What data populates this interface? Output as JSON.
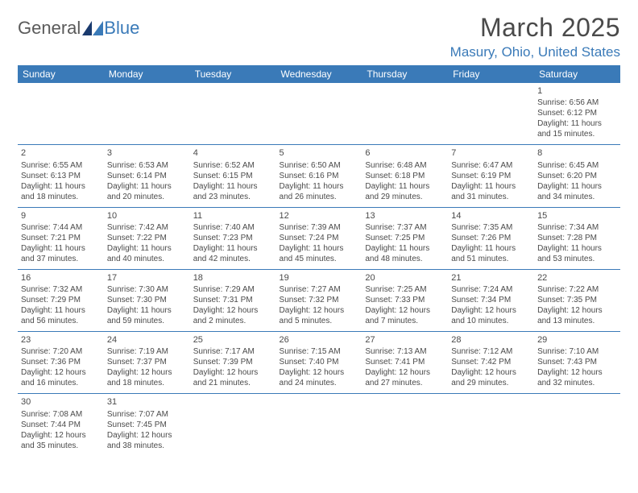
{
  "brand": {
    "general": "General",
    "blue": "Blue",
    "color_primary": "#3a7ab8",
    "color_text": "#5a5a5a"
  },
  "title": "March 2025",
  "location": "Masury, Ohio, United States",
  "weekday_labels": [
    "Sunday",
    "Monday",
    "Tuesday",
    "Wednesday",
    "Thursday",
    "Friday",
    "Saturday"
  ],
  "colors": {
    "header_bg": "#3a7ab8",
    "header_fg": "#ffffff",
    "cell_border": "#3a7ab8",
    "text": "#4a4a4a",
    "background": "#ffffff"
  },
  "weeks": [
    [
      null,
      null,
      null,
      null,
      null,
      null,
      {
        "d": "1",
        "sr": "Sunrise: 6:56 AM",
        "ss": "Sunset: 6:12 PM",
        "dl1": "Daylight: 11 hours",
        "dl2": "and 15 minutes."
      }
    ],
    [
      {
        "d": "2",
        "sr": "Sunrise: 6:55 AM",
        "ss": "Sunset: 6:13 PM",
        "dl1": "Daylight: 11 hours",
        "dl2": "and 18 minutes."
      },
      {
        "d": "3",
        "sr": "Sunrise: 6:53 AM",
        "ss": "Sunset: 6:14 PM",
        "dl1": "Daylight: 11 hours",
        "dl2": "and 20 minutes."
      },
      {
        "d": "4",
        "sr": "Sunrise: 6:52 AM",
        "ss": "Sunset: 6:15 PM",
        "dl1": "Daylight: 11 hours",
        "dl2": "and 23 minutes."
      },
      {
        "d": "5",
        "sr": "Sunrise: 6:50 AM",
        "ss": "Sunset: 6:16 PM",
        "dl1": "Daylight: 11 hours",
        "dl2": "and 26 minutes."
      },
      {
        "d": "6",
        "sr": "Sunrise: 6:48 AM",
        "ss": "Sunset: 6:18 PM",
        "dl1": "Daylight: 11 hours",
        "dl2": "and 29 minutes."
      },
      {
        "d": "7",
        "sr": "Sunrise: 6:47 AM",
        "ss": "Sunset: 6:19 PM",
        "dl1": "Daylight: 11 hours",
        "dl2": "and 31 minutes."
      },
      {
        "d": "8",
        "sr": "Sunrise: 6:45 AM",
        "ss": "Sunset: 6:20 PM",
        "dl1": "Daylight: 11 hours",
        "dl2": "and 34 minutes."
      }
    ],
    [
      {
        "d": "9",
        "sr": "Sunrise: 7:44 AM",
        "ss": "Sunset: 7:21 PM",
        "dl1": "Daylight: 11 hours",
        "dl2": "and 37 minutes."
      },
      {
        "d": "10",
        "sr": "Sunrise: 7:42 AM",
        "ss": "Sunset: 7:22 PM",
        "dl1": "Daylight: 11 hours",
        "dl2": "and 40 minutes."
      },
      {
        "d": "11",
        "sr": "Sunrise: 7:40 AM",
        "ss": "Sunset: 7:23 PM",
        "dl1": "Daylight: 11 hours",
        "dl2": "and 42 minutes."
      },
      {
        "d": "12",
        "sr": "Sunrise: 7:39 AM",
        "ss": "Sunset: 7:24 PM",
        "dl1": "Daylight: 11 hours",
        "dl2": "and 45 minutes."
      },
      {
        "d": "13",
        "sr": "Sunrise: 7:37 AM",
        "ss": "Sunset: 7:25 PM",
        "dl1": "Daylight: 11 hours",
        "dl2": "and 48 minutes."
      },
      {
        "d": "14",
        "sr": "Sunrise: 7:35 AM",
        "ss": "Sunset: 7:26 PM",
        "dl1": "Daylight: 11 hours",
        "dl2": "and 51 minutes."
      },
      {
        "d": "15",
        "sr": "Sunrise: 7:34 AM",
        "ss": "Sunset: 7:28 PM",
        "dl1": "Daylight: 11 hours",
        "dl2": "and 53 minutes."
      }
    ],
    [
      {
        "d": "16",
        "sr": "Sunrise: 7:32 AM",
        "ss": "Sunset: 7:29 PM",
        "dl1": "Daylight: 11 hours",
        "dl2": "and 56 minutes."
      },
      {
        "d": "17",
        "sr": "Sunrise: 7:30 AM",
        "ss": "Sunset: 7:30 PM",
        "dl1": "Daylight: 11 hours",
        "dl2": "and 59 minutes."
      },
      {
        "d": "18",
        "sr": "Sunrise: 7:29 AM",
        "ss": "Sunset: 7:31 PM",
        "dl1": "Daylight: 12 hours",
        "dl2": "and 2 minutes."
      },
      {
        "d": "19",
        "sr": "Sunrise: 7:27 AM",
        "ss": "Sunset: 7:32 PM",
        "dl1": "Daylight: 12 hours",
        "dl2": "and 5 minutes."
      },
      {
        "d": "20",
        "sr": "Sunrise: 7:25 AM",
        "ss": "Sunset: 7:33 PM",
        "dl1": "Daylight: 12 hours",
        "dl2": "and 7 minutes."
      },
      {
        "d": "21",
        "sr": "Sunrise: 7:24 AM",
        "ss": "Sunset: 7:34 PM",
        "dl1": "Daylight: 12 hours",
        "dl2": "and 10 minutes."
      },
      {
        "d": "22",
        "sr": "Sunrise: 7:22 AM",
        "ss": "Sunset: 7:35 PM",
        "dl1": "Daylight: 12 hours",
        "dl2": "and 13 minutes."
      }
    ],
    [
      {
        "d": "23",
        "sr": "Sunrise: 7:20 AM",
        "ss": "Sunset: 7:36 PM",
        "dl1": "Daylight: 12 hours",
        "dl2": "and 16 minutes."
      },
      {
        "d": "24",
        "sr": "Sunrise: 7:19 AM",
        "ss": "Sunset: 7:37 PM",
        "dl1": "Daylight: 12 hours",
        "dl2": "and 18 minutes."
      },
      {
        "d": "25",
        "sr": "Sunrise: 7:17 AM",
        "ss": "Sunset: 7:39 PM",
        "dl1": "Daylight: 12 hours",
        "dl2": "and 21 minutes."
      },
      {
        "d": "26",
        "sr": "Sunrise: 7:15 AM",
        "ss": "Sunset: 7:40 PM",
        "dl1": "Daylight: 12 hours",
        "dl2": "and 24 minutes."
      },
      {
        "d": "27",
        "sr": "Sunrise: 7:13 AM",
        "ss": "Sunset: 7:41 PM",
        "dl1": "Daylight: 12 hours",
        "dl2": "and 27 minutes."
      },
      {
        "d": "28",
        "sr": "Sunrise: 7:12 AM",
        "ss": "Sunset: 7:42 PM",
        "dl1": "Daylight: 12 hours",
        "dl2": "and 29 minutes."
      },
      {
        "d": "29",
        "sr": "Sunrise: 7:10 AM",
        "ss": "Sunset: 7:43 PM",
        "dl1": "Daylight: 12 hours",
        "dl2": "and 32 minutes."
      }
    ],
    [
      {
        "d": "30",
        "sr": "Sunrise: 7:08 AM",
        "ss": "Sunset: 7:44 PM",
        "dl1": "Daylight: 12 hours",
        "dl2": "and 35 minutes."
      },
      {
        "d": "31",
        "sr": "Sunrise: 7:07 AM",
        "ss": "Sunset: 7:45 PM",
        "dl1": "Daylight: 12 hours",
        "dl2": "and 38 minutes."
      },
      null,
      null,
      null,
      null,
      null
    ]
  ]
}
